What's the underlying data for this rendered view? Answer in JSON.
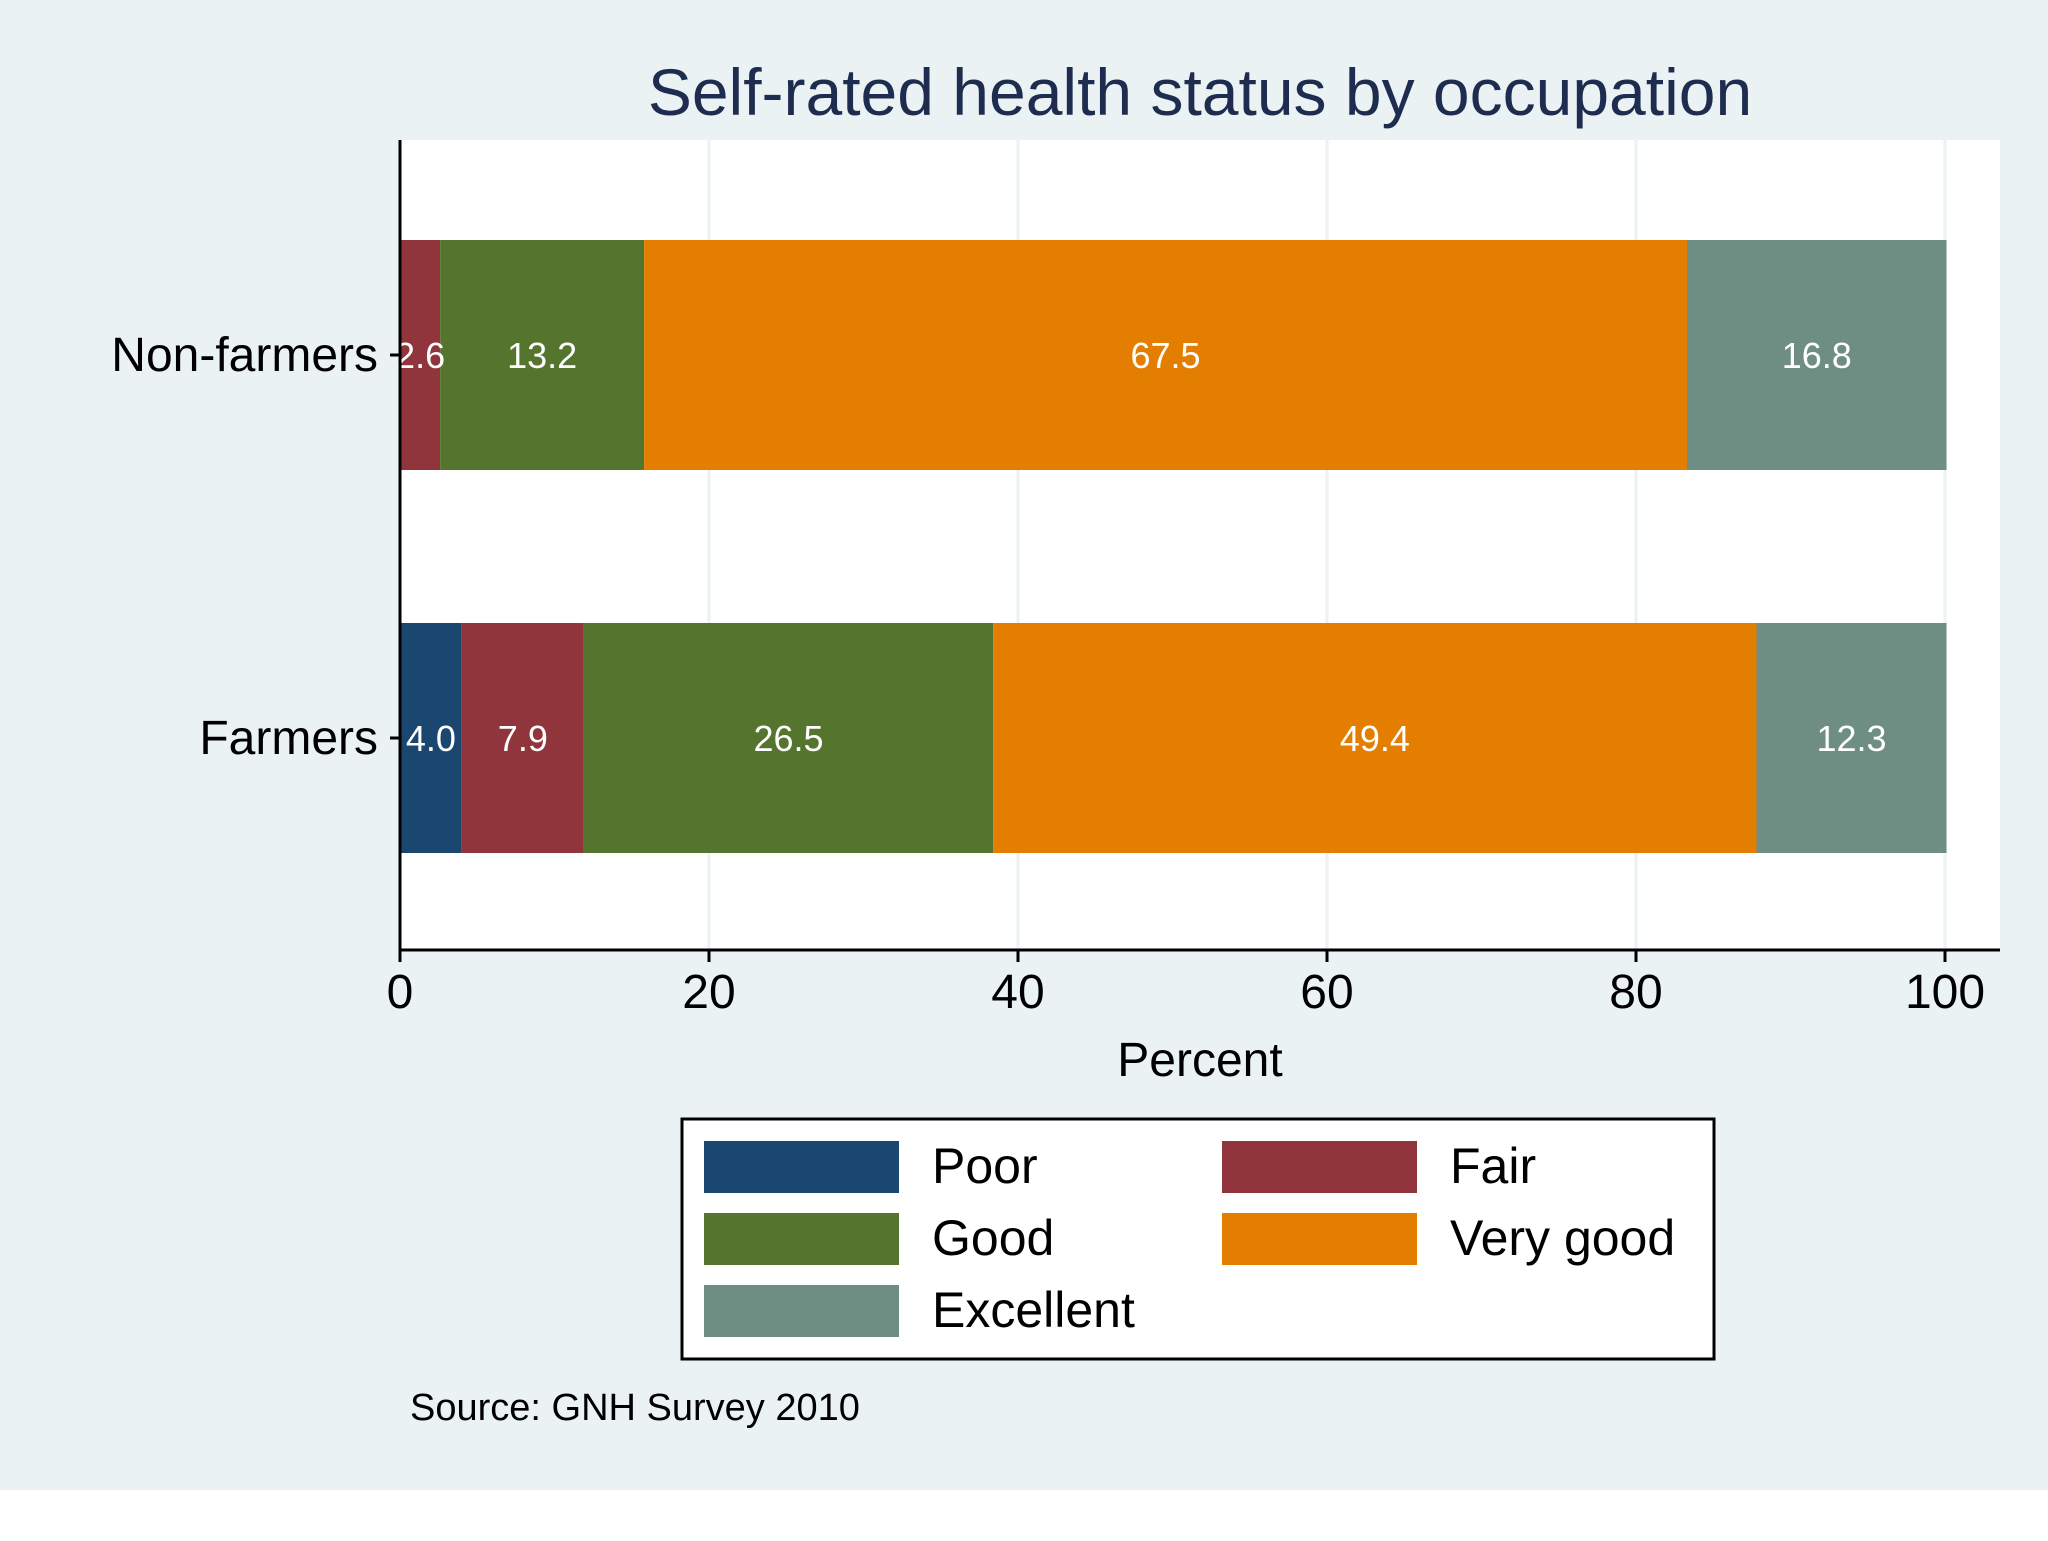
{
  "chart_data": {
    "type": "bar",
    "orientation": "horizontal",
    "stacked": true,
    "title": "Self-rated health status by occupation",
    "xlabel": "Percent",
    "ylabel": "",
    "xlim": [
      0,
      100
    ],
    "xticks": [
      "0",
      "20",
      "40",
      "60",
      "80",
      "100"
    ],
    "categories": [
      "Non-farmers",
      "Farmers"
    ],
    "series": [
      {
        "name": "Poor",
        "color": "#1a476f",
        "values": [
          0.0,
          4.0
        ],
        "labels": [
          "",
          "4.0"
        ]
      },
      {
        "name": "Fair",
        "color": "#90353b",
        "values": [
          2.6,
          7.9
        ],
        "labels": [
          "2.6",
          "7.9"
        ]
      },
      {
        "name": "Good",
        "color": "#55752f",
        "values": [
          13.2,
          26.5
        ],
        "labels": [
          "13.2",
          "26.5"
        ]
      },
      {
        "name": "Very good",
        "color": "#e37e00",
        "values": [
          67.5,
          49.4
        ],
        "labels": [
          "67.5",
          "49.4"
        ]
      },
      {
        "name": "Excellent",
        "color": "#6e8e84",
        "values": [
          16.8,
          12.3
        ],
        "labels": [
          "16.8",
          "12.3"
        ]
      }
    ],
    "grid": true,
    "legend_position": "bottom",
    "note": "Source: GNH Survey 2010"
  },
  "colors": {
    "background": "#eaf2f3",
    "plot_background": "#ffffff",
    "title": "#1e2d4f",
    "text": "#000000",
    "bar_label": "#ffffff",
    "grid": "#eaf2f3"
  }
}
